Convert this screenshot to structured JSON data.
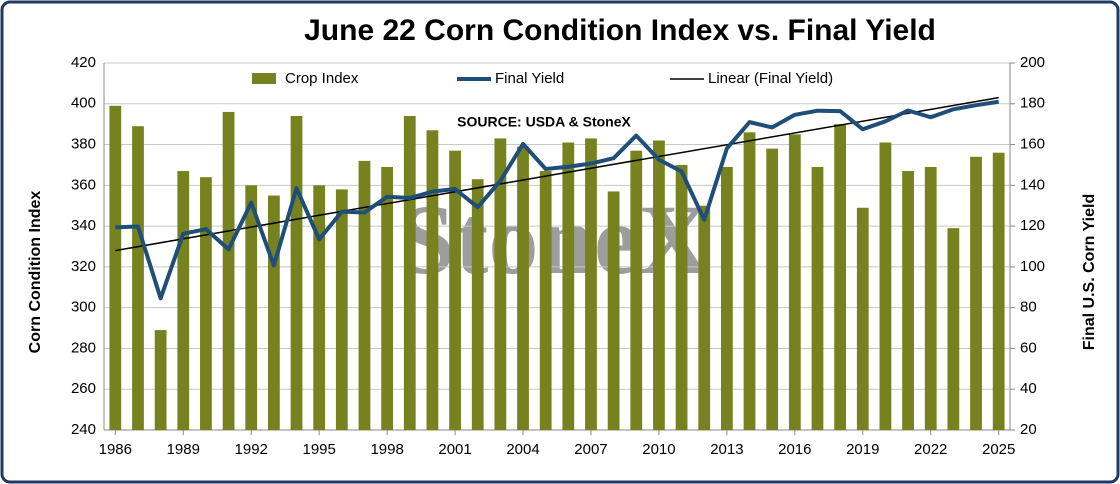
{
  "chart_data": {
    "type": "bar_line",
    "title": "June 22 Corn Condition Index vs. Final Yield",
    "annotation": "SOURCE: USDA & StoneX",
    "watermark": "StoneX",
    "ylabel": "Corn Condition Index",
    "y2label": "Final U.S. Corn Yield",
    "x": [
      1986,
      1987,
      1988,
      1989,
      1990,
      1991,
      1992,
      1993,
      1994,
      1995,
      1996,
      1997,
      1998,
      1999,
      2000,
      2001,
      2002,
      2003,
      2004,
      2005,
      2006,
      2007,
      2008,
      2009,
      2010,
      2011,
      2012,
      2013,
      2014,
      2015,
      2016,
      2017,
      2018,
      2019,
      2020,
      2021,
      2022,
      2023,
      2024,
      2025
    ],
    "series": [
      {
        "name": "Crop Index",
        "color": "#76821e",
        "kind": "bar",
        "values": [
          399,
          389,
          289,
          367,
          364,
          396,
          360,
          355,
          394,
          360,
          358,
          372,
          369,
          394,
          387,
          377,
          363,
          383,
          379,
          367,
          381,
          383,
          357,
          377,
          382,
          370,
          350,
          369,
          386,
          378,
          385,
          369,
          390,
          349,
          381,
          367,
          369,
          339,
          374,
          376
        ]
      },
      {
        "name": "Final Yield",
        "color": "#1f4e79",
        "kind": "line",
        "axis": "y2",
        "values": [
          119.4,
          119.8,
          84.6,
          116.3,
          118.5,
          108.6,
          131.5,
          100.7,
          138.6,
          113.5,
          127.1,
          126.7,
          134.4,
          133.8,
          136.9,
          138.2,
          129.3,
          142.2,
          160.3,
          148.0,
          149.1,
          150.7,
          153.3,
          164.4,
          152.6,
          146.8,
          123.1,
          158.1,
          171.0,
          168.4,
          174.6,
          176.6,
          176.4,
          167.5,
          171.4,
          176.7,
          173.4,
          177.3,
          179.3,
          181
        ]
      }
    ],
    "trendline": {
      "name": "Linear (Final Yield)",
      "color": "#000000",
      "axis": "y2",
      "x": [
        1986,
        2025
      ],
      "values": [
        108,
        183
      ]
    },
    "xlim": [
      1985.5,
      2025.5
    ],
    "xticks": [
      1986,
      1989,
      1992,
      1995,
      1998,
      2001,
      2004,
      2007,
      2010,
      2013,
      2016,
      2019,
      2022,
      2025
    ],
    "ylim": [
      240,
      420
    ],
    "yticks": [
      240,
      260,
      280,
      300,
      320,
      340,
      360,
      380,
      400,
      420
    ],
    "y2lim": [
      20,
      200
    ],
    "y2ticks": [
      20,
      40,
      60,
      80,
      100,
      120,
      140,
      160,
      180,
      200
    ],
    "grid": true,
    "legend": "top"
  }
}
